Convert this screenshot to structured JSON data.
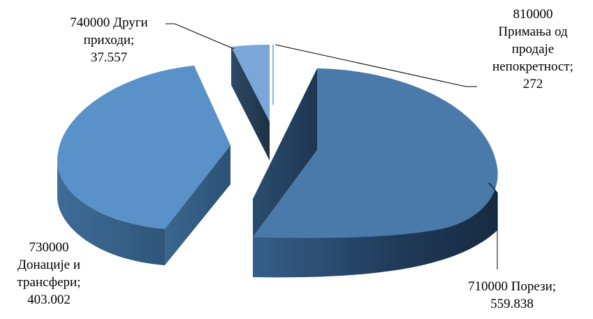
{
  "chart_data": {
    "type": "pie",
    "style": "3d-exploded",
    "slices": [
      {
        "name": "710000 Порези",
        "value": 559.838,
        "color": "#4a7aa9",
        "label": [
          "710000 Порези;",
          "559.838"
        ]
      },
      {
        "name": "730000 Донације и трансфери",
        "value": 403.002,
        "color": "#5a91c8",
        "label": [
          "730000",
          "Донације и",
          "трансфери;",
          "403.002"
        ]
      },
      {
        "name": "740000 Други приходи",
        "value": 37.557,
        "color": "#7aa7d8",
        "label": [
          "740000 Други",
          "приходи;",
          "37.557"
        ]
      },
      {
        "name": "810000 Примања од продаје непокретност",
        "value": 0.272,
        "color": "#8cb4df",
        "label": [
          "810000",
          "Примања од",
          "продаје",
          "непокретност;",
          "272"
        ]
      }
    ],
    "legend": "none"
  }
}
